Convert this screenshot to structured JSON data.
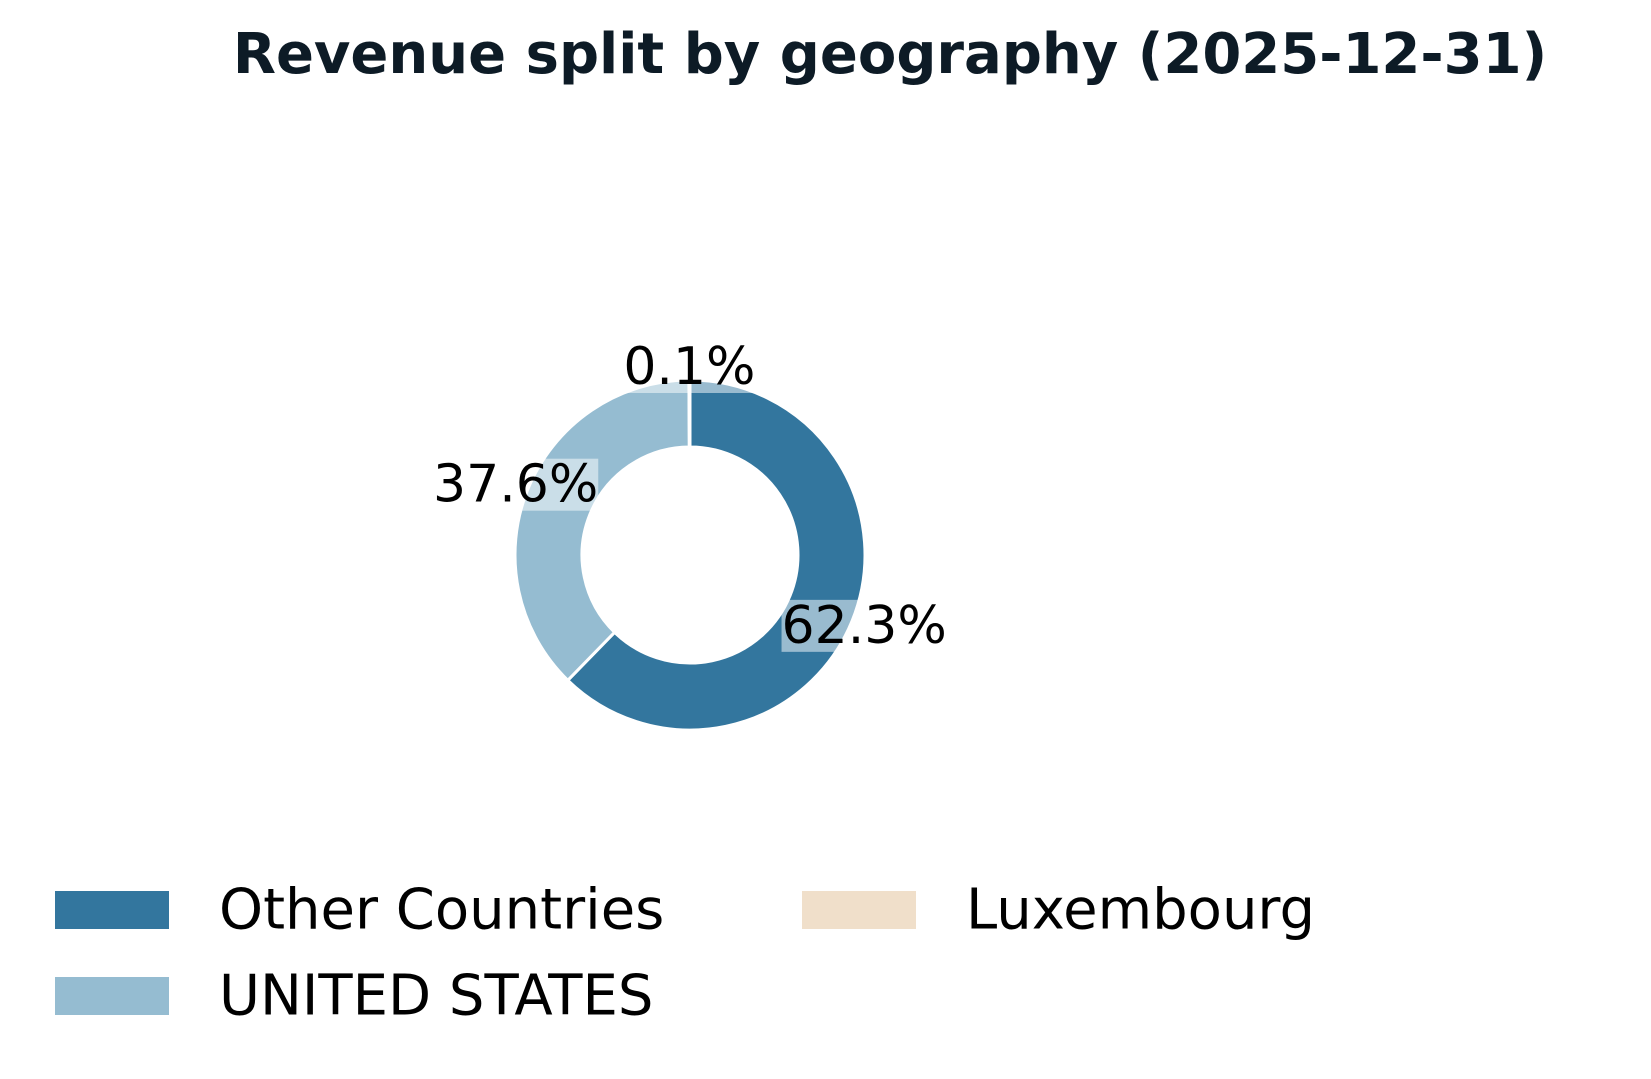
{
  "chart_data": {
    "type": "pie",
    "style": "donut",
    "title": "Revenue split by geography (2025-12-31)",
    "slices": [
      {
        "name": "Other Countries",
        "value": 62.3,
        "label": "62.3%",
        "color": "#33769e"
      },
      {
        "name": "UNITED STATES",
        "value": 37.6,
        "label": "37.6%",
        "color": "#95bcd1"
      },
      {
        "name": "Luxembourg",
        "value": 0.1,
        "label": "0.1%",
        "color": "#f0dfca"
      }
    ],
    "start_angle": "top",
    "direction": "clockwise",
    "legend_position": "bottom",
    "legend_columns": 2
  }
}
